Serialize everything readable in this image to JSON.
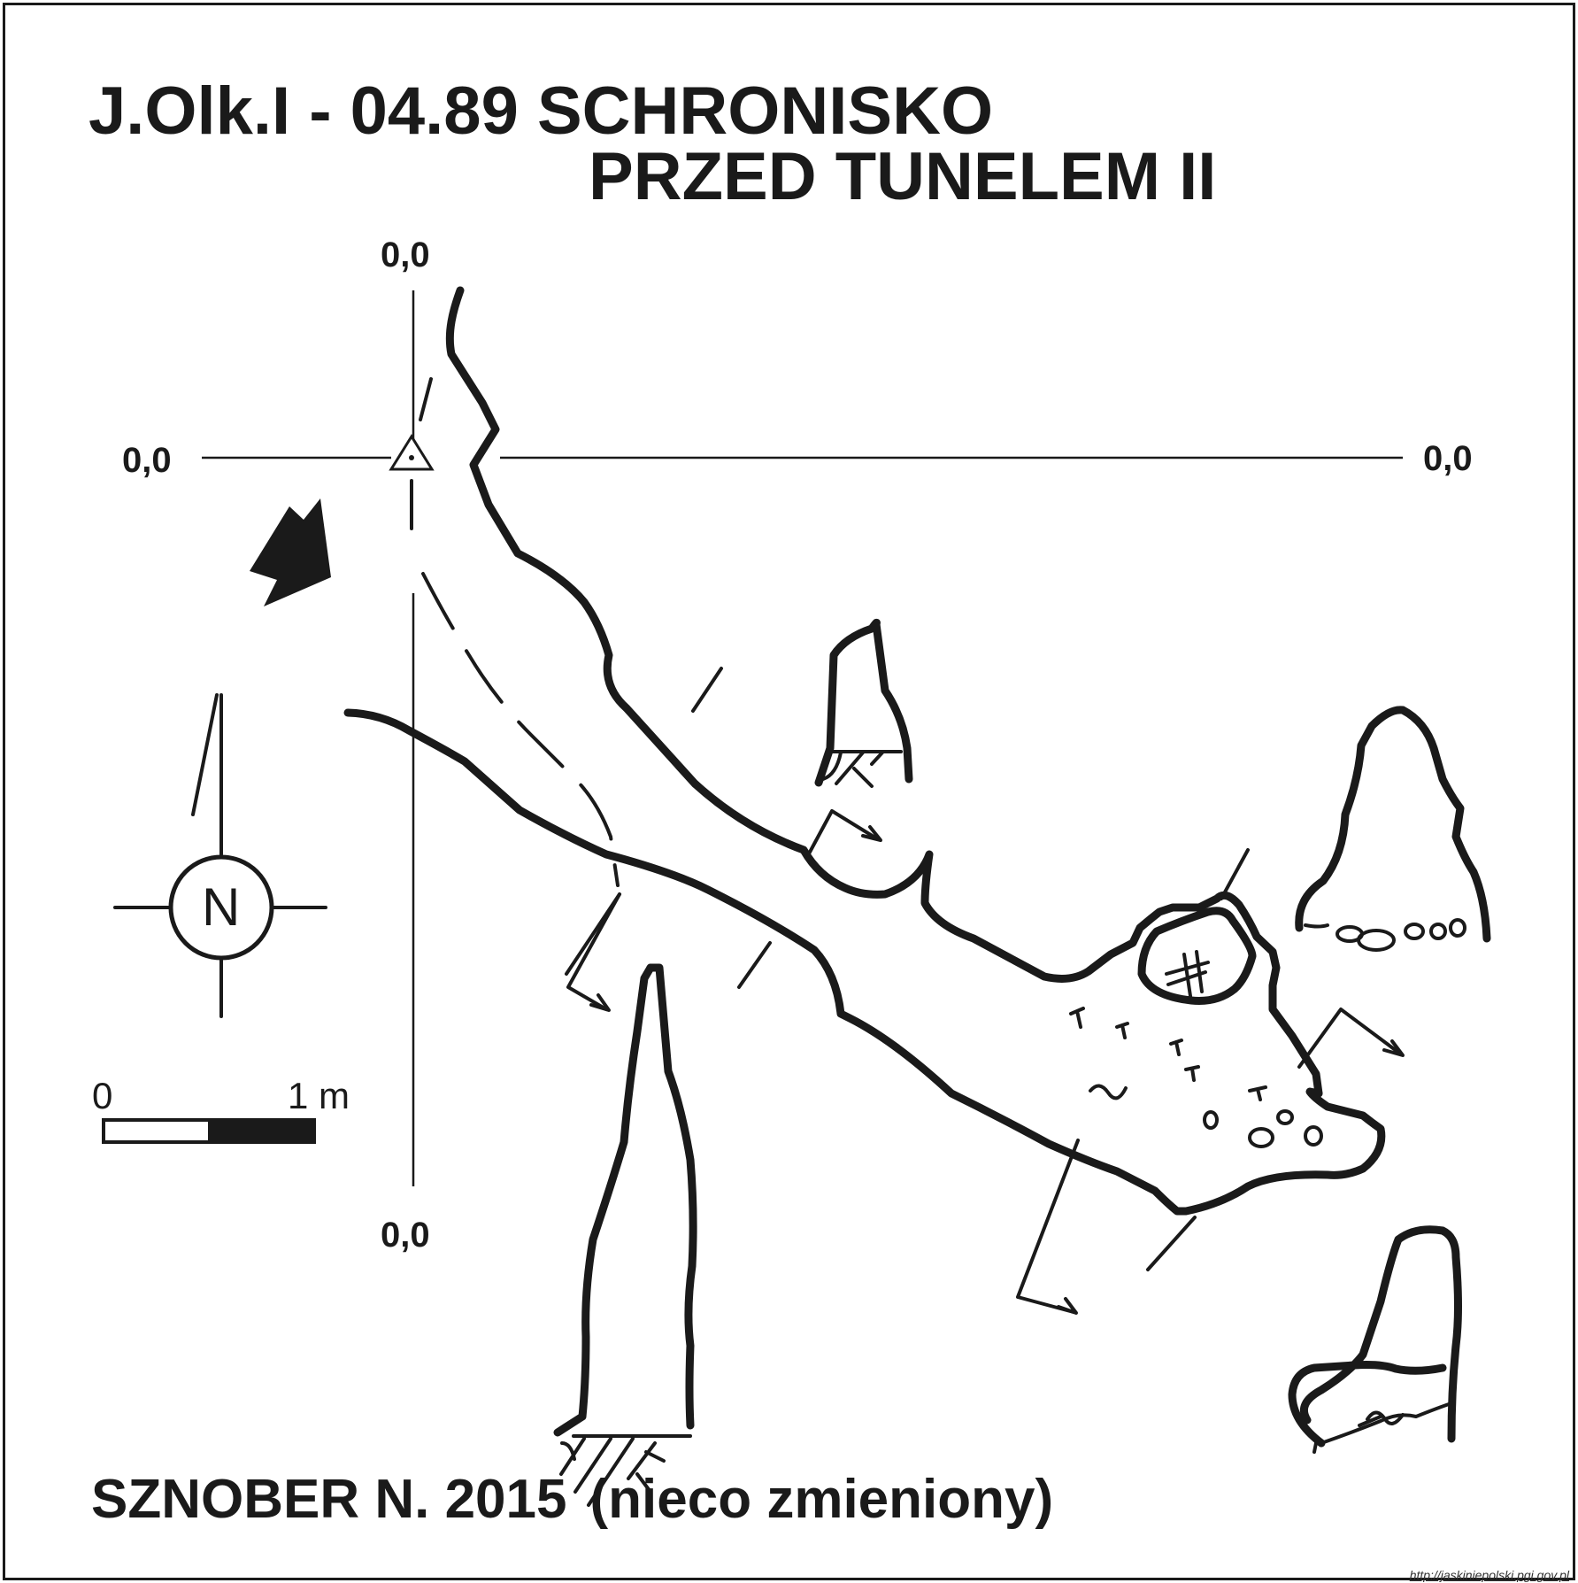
{
  "title": {
    "line1": "J.Olk.I - 04.89 SCHRONISKO",
    "line2": "PRZED TUNELEM  II"
  },
  "coordinates": {
    "top": "0,0",
    "left": "0,0",
    "right": "0,0",
    "bottom": "0,0"
  },
  "north_arrow": {
    "letter": "N"
  },
  "scale_bar": {
    "start": "0",
    "end": "1 m"
  },
  "author": {
    "name_year": "SZNOBER N.  2015",
    "note": "(nieco zmieniony)"
  },
  "source_url": "http://jaskiniepolski.pgi.gov.pl"
}
